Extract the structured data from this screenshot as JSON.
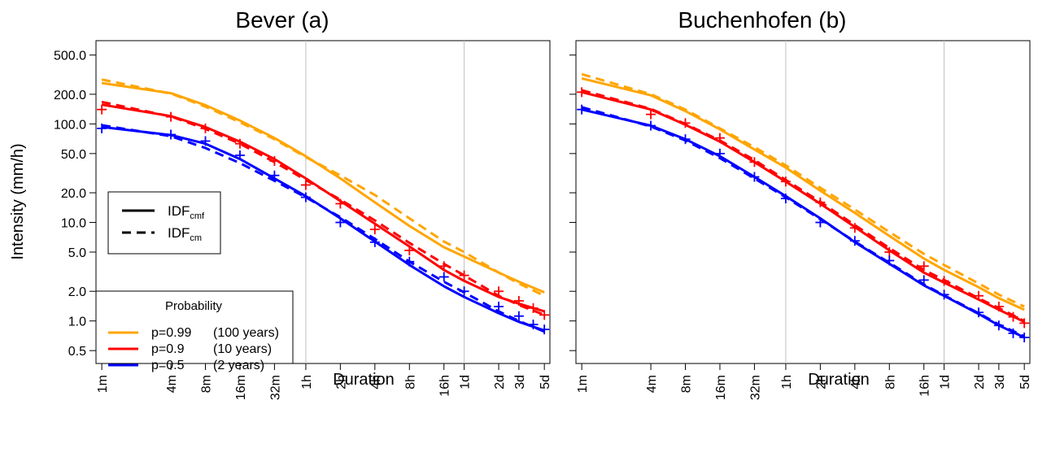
{
  "chart_data": [
    {
      "type": "line",
      "title": "Bever (a)",
      "xlabel": "Duration",
      "ylabel": "Intensity (mm/h)",
      "x_scale": "log",
      "y_scale": "log",
      "x_ticks": [
        "1m",
        "4m",
        "8m",
        "16m",
        "32m",
        "1h",
        "2h",
        "4h",
        "8h",
        "16h",
        "1d",
        "2d",
        "3d",
        "5d"
      ],
      "x_tick_minutes": [
        1,
        4,
        8,
        16,
        32,
        60,
        120,
        240,
        480,
        960,
        1440,
        2880,
        4320,
        7200
      ],
      "y_ticks": [
        "500.0",
        "200.0",
        "100.0",
        "50.0",
        "20.0",
        "10.0",
        "5.0",
        "2.0",
        "1.0",
        "0.5"
      ],
      "y_tick_values": [
        500,
        200,
        100,
        50,
        20,
        10,
        5,
        2,
        1,
        0.5
      ],
      "vertical_gridlines_minutes": [
        60,
        1440
      ],
      "legend_line_types": {
        "solid": "IDF",
        "solid_sub": "cmf",
        "dashed": "IDF",
        "dashed_sub": "cm"
      },
      "legend_probability": {
        "title": "Probability",
        "entries": [
          {
            "p": "p=0.99",
            "years": "(100 years)",
            "color": "#FFA500"
          },
          {
            "p": "p=0.9",
            "years": "(10 years)",
            "color": "#FF0000"
          },
          {
            "p": "p=0.5",
            "years": "(2 years)",
            "color": "#0000FF"
          }
        ]
      },
      "series": [
        {
          "color": "#FFA500",
          "solid": [
            [
              1,
              260
            ],
            [
              4,
              205
            ],
            [
              8,
              155
            ],
            [
              16,
              108
            ],
            [
              32,
              72
            ],
            [
              60,
              47
            ],
            [
              120,
              28
            ],
            [
              240,
              16
            ],
            [
              480,
              9.2
            ],
            [
              960,
              5.6
            ],
            [
              1440,
              4.5
            ],
            [
              2880,
              3.1
            ],
            [
              4320,
              2.5
            ],
            [
              7200,
              1.95
            ]
          ],
          "dashed": [
            [
              1,
              282
            ],
            [
              4,
              203
            ],
            [
              8,
              150
            ],
            [
              16,
              104
            ],
            [
              32,
              70
            ],
            [
              60,
              46
            ],
            [
              120,
              30
            ],
            [
              240,
              19
            ],
            [
              480,
              11
            ],
            [
              960,
              6.4
            ],
            [
              1440,
              5.0
            ],
            [
              2880,
              3.1
            ],
            [
              4320,
              2.4
            ],
            [
              7200,
              1.8
            ]
          ],
          "points": []
        },
        {
          "color": "#FF0000",
          "solid": [
            [
              1,
              157
            ],
            [
              4,
              120
            ],
            [
              8,
              93
            ],
            [
              16,
              66
            ],
            [
              32,
              44
            ],
            [
              60,
              28
            ],
            [
              120,
              16.5
            ],
            [
              240,
              9.7
            ],
            [
              480,
              5.7
            ],
            [
              960,
              3.3
            ],
            [
              1440,
              2.55
            ],
            [
              2880,
              1.75
            ],
            [
              4320,
              1.5
            ],
            [
              7200,
              1.25
            ]
          ],
          "dashed": [
            [
              1,
              167
            ],
            [
              4,
              119
            ],
            [
              8,
              89
            ],
            [
              16,
              63
            ],
            [
              32,
              41
            ],
            [
              60,
              27
            ],
            [
              120,
              17
            ],
            [
              240,
              10.5
            ],
            [
              480,
              6.2
            ],
            [
              960,
              3.8
            ],
            [
              1440,
              2.9
            ],
            [
              2880,
              1.8
            ],
            [
              4320,
              1.45
            ],
            [
              7200,
              1.15
            ]
          ],
          "points": [
            [
              1,
              140
            ],
            [
              4,
              118
            ],
            [
              8,
              90
            ],
            [
              16,
              63
            ],
            [
              32,
              42
            ],
            [
              60,
              24
            ],
            [
              120,
              15.5
            ],
            [
              240,
              8.5
            ],
            [
              480,
              5.2
            ],
            [
              960,
              3.6
            ],
            [
              1440,
              2.9
            ],
            [
              2880,
              2.0
            ],
            [
              4320,
              1.6
            ],
            [
              5760,
              1.35
            ],
            [
              7200,
              1.15
            ]
          ]
        },
        {
          "color": "#0000FF",
          "solid": [
            [
              1,
              93
            ],
            [
              4,
              77
            ],
            [
              8,
              63
            ],
            [
              16,
              44
            ],
            [
              32,
              28
            ],
            [
              60,
              18.5
            ],
            [
              120,
              11
            ],
            [
              240,
              6.4
            ],
            [
              480,
              3.7
            ],
            [
              960,
              2.25
            ],
            [
              1440,
              1.75
            ],
            [
              2880,
              1.2
            ],
            [
              4320,
              0.98
            ],
            [
              7200,
              0.8
            ]
          ],
          "dashed": [
            [
              1,
              97
            ],
            [
              4,
              75
            ],
            [
              8,
              57
            ],
            [
              16,
              40
            ],
            [
              32,
              26.5
            ],
            [
              60,
              18
            ],
            [
              120,
              11.3
            ],
            [
              240,
              6.8
            ],
            [
              480,
              4.0
            ],
            [
              960,
              2.5
            ],
            [
              1440,
              1.95
            ],
            [
              2880,
              1.25
            ],
            [
              4320,
              1.0
            ],
            [
              7200,
              0.78
            ]
          ],
          "points": [
            [
              1,
              90
            ],
            [
              4,
              78
            ],
            [
              8,
              67
            ],
            [
              16,
              48
            ],
            [
              32,
              30
            ],
            [
              60,
              18
            ],
            [
              120,
              10
            ],
            [
              240,
              6.3
            ],
            [
              480,
              4.0
            ],
            [
              960,
              2.8
            ],
            [
              1440,
              2.0
            ],
            [
              2880,
              1.4
            ],
            [
              4320,
              1.12
            ],
            [
              5760,
              0.92
            ],
            [
              7200,
              0.82
            ]
          ]
        }
      ]
    },
    {
      "type": "line",
      "title": "Buchenhofen (b)",
      "xlabel": "Duration",
      "x_scale": "log",
      "y_scale": "log",
      "x_ticks": [
        "1m",
        "4m",
        "8m",
        "16m",
        "32m",
        "1h",
        "2h",
        "4h",
        "8h",
        "16h",
        "1d",
        "2d",
        "3d",
        "5d"
      ],
      "x_tick_minutes": [
        1,
        4,
        8,
        16,
        32,
        60,
        120,
        240,
        480,
        960,
        1440,
        2880,
        4320,
        7200
      ],
      "vertical_gridlines_minutes": [
        60,
        1440
      ],
      "series": [
        {
          "color": "#FFA500",
          "solid": [
            [
              1,
              290
            ],
            [
              4,
              195
            ],
            [
              8,
              135
            ],
            [
              16,
              88
            ],
            [
              32,
              55
            ],
            [
              60,
              36
            ],
            [
              120,
              21
            ],
            [
              240,
              12.5
            ],
            [
              480,
              7.3
            ],
            [
              960,
              4.3
            ],
            [
              1440,
              3.3
            ],
            [
              2880,
              2.2
            ],
            [
              4320,
              1.7
            ],
            [
              7200,
              1.3
            ]
          ],
          "dashed": [
            [
              1,
              320
            ],
            [
              4,
              200
            ],
            [
              8,
              140
            ],
            [
              16,
              90
            ],
            [
              32,
              58
            ],
            [
              60,
              38
            ],
            [
              120,
              22.5
            ],
            [
              240,
              13.5
            ],
            [
              480,
              8.0
            ],
            [
              960,
              4.8
            ],
            [
              1440,
              3.7
            ],
            [
              2880,
              2.4
            ],
            [
              4320,
              1.85
            ],
            [
              7200,
              1.4
            ]
          ],
          "points": []
        },
        {
          "color": "#FF0000",
          "solid": [
            [
              1,
              210
            ],
            [
              4,
              140
            ],
            [
              8,
              98
            ],
            [
              16,
              66
            ],
            [
              32,
              41
            ],
            [
              60,
              26
            ],
            [
              120,
              15.5
            ],
            [
              240,
              9.0
            ],
            [
              480,
              5.2
            ],
            [
              960,
              3.1
            ],
            [
              1440,
              2.45
            ],
            [
              2880,
              1.65
            ],
            [
              4320,
              1.3
            ],
            [
              7200,
              0.98
            ]
          ],
          "dashed": [
            [
              1,
              220
            ],
            [
              4,
              142
            ],
            [
              8,
              100
            ],
            [
              16,
              68
            ],
            [
              32,
              43
            ],
            [
              60,
              27
            ],
            [
              120,
              16.2
            ],
            [
              240,
              9.4
            ],
            [
              480,
              5.5
            ],
            [
              960,
              3.3
            ],
            [
              1440,
              2.6
            ],
            [
              2880,
              1.7
            ],
            [
              4320,
              1.35
            ],
            [
              7200,
              1.0
            ]
          ],
          "points": [
            [
              1,
              210
            ],
            [
              4,
              125
            ],
            [
              8,
              102
            ],
            [
              16,
              72
            ],
            [
              32,
              41
            ],
            [
              60,
              26
            ],
            [
              120,
              16
            ],
            [
              240,
              8.8
            ],
            [
              480,
              5.0
            ],
            [
              960,
              3.6
            ],
            [
              1440,
              2.55
            ],
            [
              2880,
              1.8
            ],
            [
              4320,
              1.4
            ],
            [
              5760,
              1.1
            ],
            [
              7200,
              0.95
            ]
          ]
        },
        {
          "color": "#0000FF",
          "solid": [
            [
              1,
              140
            ],
            [
              4,
              96
            ],
            [
              8,
              70
            ],
            [
              16,
              47
            ],
            [
              32,
              29
            ],
            [
              60,
              18.5
            ],
            [
              120,
              11
            ],
            [
              240,
              6.3
            ],
            [
              480,
              3.8
            ],
            [
              960,
              2.3
            ],
            [
              1440,
              1.8
            ],
            [
              2880,
              1.18
            ],
            [
              4320,
              0.9
            ],
            [
              7200,
              0.68
            ]
          ],
          "dashed": [
            [
              1,
              148
            ],
            [
              4,
              94
            ],
            [
              8,
              68
            ],
            [
              16,
              45
            ],
            [
              32,
              28
            ],
            [
              60,
              18
            ],
            [
              120,
              10.8
            ],
            [
              240,
              6.4
            ],
            [
              480,
              3.9
            ],
            [
              960,
              2.35
            ],
            [
              1440,
              1.82
            ],
            [
              2880,
              1.2
            ],
            [
              4320,
              0.92
            ],
            [
              7200,
              0.7
            ]
          ],
          "points": [
            [
              1,
              140
            ],
            [
              4,
              96
            ],
            [
              8,
              70
            ],
            [
              16,
              50
            ],
            [
              32,
              29
            ],
            [
              60,
              17.5
            ],
            [
              120,
              10
            ],
            [
              240,
              6.5
            ],
            [
              480,
              4.1
            ],
            [
              960,
              2.6
            ],
            [
              1440,
              1.85
            ],
            [
              2880,
              1.22
            ],
            [
              4320,
              0.9
            ],
            [
              5760,
              0.75
            ],
            [
              7200,
              0.68
            ]
          ]
        }
      ]
    }
  ]
}
